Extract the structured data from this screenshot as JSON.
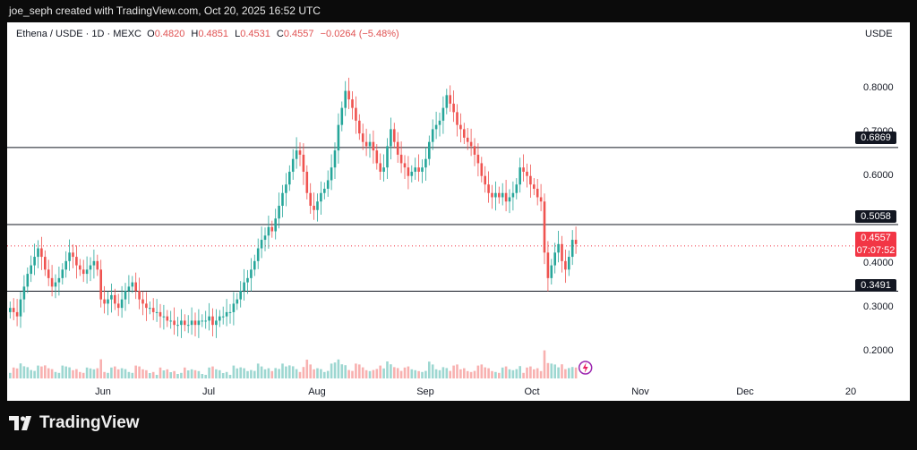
{
  "header": {
    "attribution": "joe_seph created with TradingView.com, Oct 20, 2025 16:52 UTC"
  },
  "legend": {
    "symbol": "Ethena / USDE · 1D · MEXC",
    "o_label": "O",
    "o_value": "0.4820",
    "h_label": "H",
    "h_value": "0.4851",
    "l_label": "L",
    "l_value": "0.4531",
    "c_label": "C",
    "c_value": "0.4557",
    "change": "−0.0264 (−5.48%)"
  },
  "axis": {
    "currency": "USDE",
    "y_ticks": [
      "0.8000",
      "0.7000",
      "0.6000",
      "0.4000",
      "0.3000",
      "0.2000"
    ],
    "x_ticks": [
      "Jun",
      "Jul",
      "Aug",
      "Sep",
      "Oct",
      "Nov",
      "Dec",
      "20"
    ]
  },
  "levels": [
    "0.6869",
    "0.5058",
    "0.3491"
  ],
  "price": {
    "last": "0.4557",
    "countdown": "07:07:52"
  },
  "footer": {
    "brand": "TradingView"
  },
  "colors": {
    "up": "#26a69a",
    "down": "#ef5350",
    "level_line": "#131722",
    "price_line": "#f23645"
  },
  "icons": [
    "tradingview-logo-icon",
    "lightning-icon"
  ],
  "chart_data": {
    "type": "candlestick",
    "title": "Ethena / USDE · 1D · MEXC",
    "ylim": [
      0.14,
      0.96
    ],
    "horizontal_levels": [
      0.6869,
      0.5058,
      0.3491
    ],
    "last_price": 0.4557,
    "x_labels": [
      "Jun",
      "Jul",
      "Aug",
      "Sep",
      "Oct",
      "Nov",
      "Dec",
      "20"
    ],
    "closes": [
      0.31,
      0.3,
      0.29,
      0.33,
      0.36,
      0.39,
      0.41,
      0.43,
      0.45,
      0.43,
      0.4,
      0.38,
      0.36,
      0.37,
      0.38,
      0.4,
      0.42,
      0.44,
      0.43,
      0.41,
      0.4,
      0.39,
      0.4,
      0.41,
      0.42,
      0.4,
      0.33,
      0.32,
      0.33,
      0.34,
      0.32,
      0.31,
      0.33,
      0.35,
      0.36,
      0.37,
      0.35,
      0.33,
      0.32,
      0.31,
      0.31,
      0.3,
      0.3,
      0.29,
      0.29,
      0.28,
      0.28,
      0.27,
      0.27,
      0.28,
      0.27,
      0.27,
      0.28,
      0.27,
      0.28,
      0.28,
      0.28,
      0.29,
      0.27,
      0.28,
      0.29,
      0.29,
      0.3,
      0.3,
      0.32,
      0.33,
      0.35,
      0.37,
      0.38,
      0.4,
      0.42,
      0.45,
      0.47,
      0.48,
      0.5,
      0.49,
      0.52,
      0.55,
      0.58,
      0.6,
      0.63,
      0.66,
      0.68,
      0.67,
      0.63,
      0.58,
      0.55,
      0.54,
      0.56,
      0.58,
      0.59,
      0.61,
      0.64,
      0.68,
      0.74,
      0.78,
      0.82,
      0.8,
      0.78,
      0.75,
      0.72,
      0.7,
      0.69,
      0.7,
      0.68,
      0.65,
      0.63,
      0.64,
      0.69,
      0.73,
      0.7,
      0.67,
      0.65,
      0.64,
      0.62,
      0.63,
      0.64,
      0.63,
      0.64,
      0.66,
      0.7,
      0.73,
      0.74,
      0.75,
      0.78,
      0.81,
      0.79,
      0.77,
      0.74,
      0.73,
      0.71,
      0.7,
      0.69,
      0.67,
      0.65,
      0.62,
      0.6,
      0.58,
      0.57,
      0.58,
      0.57,
      0.58,
      0.56,
      0.57,
      0.58,
      0.6,
      0.64,
      0.63,
      0.62,
      0.6,
      0.59,
      0.57,
      0.56,
      0.44,
      0.38,
      0.41,
      0.44,
      0.46,
      0.42,
      0.4,
      0.43,
      0.47,
      0.46
    ]
  }
}
